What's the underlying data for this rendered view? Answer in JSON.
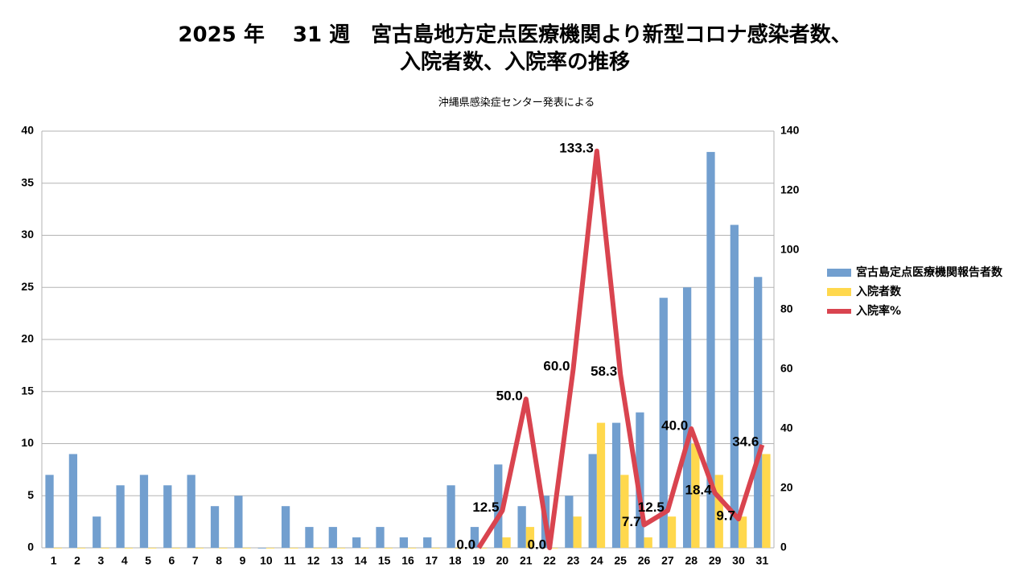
{
  "chart_data": {
    "type": "bar",
    "title": [
      "2025 年　 31 週　宮古島地方定点医療機関より新型コロナ感染者数、",
      "入院者数、入院率の推移"
    ],
    "subtitle": "沖縄県感染症センター発表による",
    "categories": [
      "1",
      "2",
      "3",
      "4",
      "5",
      "6",
      "7",
      "8",
      "9",
      "10",
      "11",
      "12",
      "13",
      "14",
      "15",
      "16",
      "17",
      "18",
      "19",
      "20",
      "21",
      "22",
      "23",
      "24",
      "25",
      "26",
      "27",
      "28",
      "29",
      "30",
      "31"
    ],
    "series": [
      {
        "name": "宮古島定点医療機関報告者数",
        "color": "#729fcf",
        "type": "bar",
        "values": [
          7,
          9,
          3,
          6,
          7,
          6,
          7,
          4,
          5,
          0,
          4,
          2,
          2,
          1,
          2,
          1,
          1,
          6,
          2,
          8,
          4,
          5,
          5,
          9,
          12,
          13,
          24,
          25,
          38,
          31,
          26
        ]
      },
      {
        "name": "入院者数",
        "color": "#ffd84d",
        "type": "bar",
        "values": [
          0,
          0,
          0,
          0,
          0,
          0,
          0,
          0,
          0,
          0,
          0,
          0,
          0,
          0,
          0,
          0,
          0,
          0,
          0,
          1,
          2,
          0,
          3,
          12,
          7,
          1,
          3,
          10,
          7,
          3,
          9
        ]
      },
      {
        "name": "入院率%",
        "color": "#d9444f",
        "type": "line",
        "axis": "y2",
        "values": [
          null,
          null,
          null,
          null,
          null,
          null,
          null,
          null,
          null,
          null,
          null,
          null,
          null,
          null,
          null,
          null,
          null,
          null,
          0,
          12.5,
          50,
          0,
          60,
          133.3,
          58.3,
          7.7,
          12.5,
          40,
          18.4,
          9.7,
          34.6
        ],
        "value_labels": [
          null,
          null,
          null,
          null,
          null,
          null,
          null,
          null,
          null,
          null,
          null,
          null,
          null,
          null,
          null,
          null,
          null,
          null,
          "0.0",
          "12.5",
          "50.0",
          "0.0",
          "60.0",
          "133.3",
          "58.3",
          "7.7",
          "12.5",
          "40.0",
          "18.4",
          "9.7",
          "34.6"
        ]
      }
    ],
    "ylim": [
      0,
      40
    ],
    "yticks": [
      0,
      5,
      10,
      15,
      20,
      25,
      30,
      35,
      40
    ],
    "y2lim": [
      0,
      140
    ],
    "y2ticks": [
      0,
      20,
      40,
      60,
      80,
      100,
      120,
      140
    ],
    "grid": true,
    "legend": "right"
  }
}
